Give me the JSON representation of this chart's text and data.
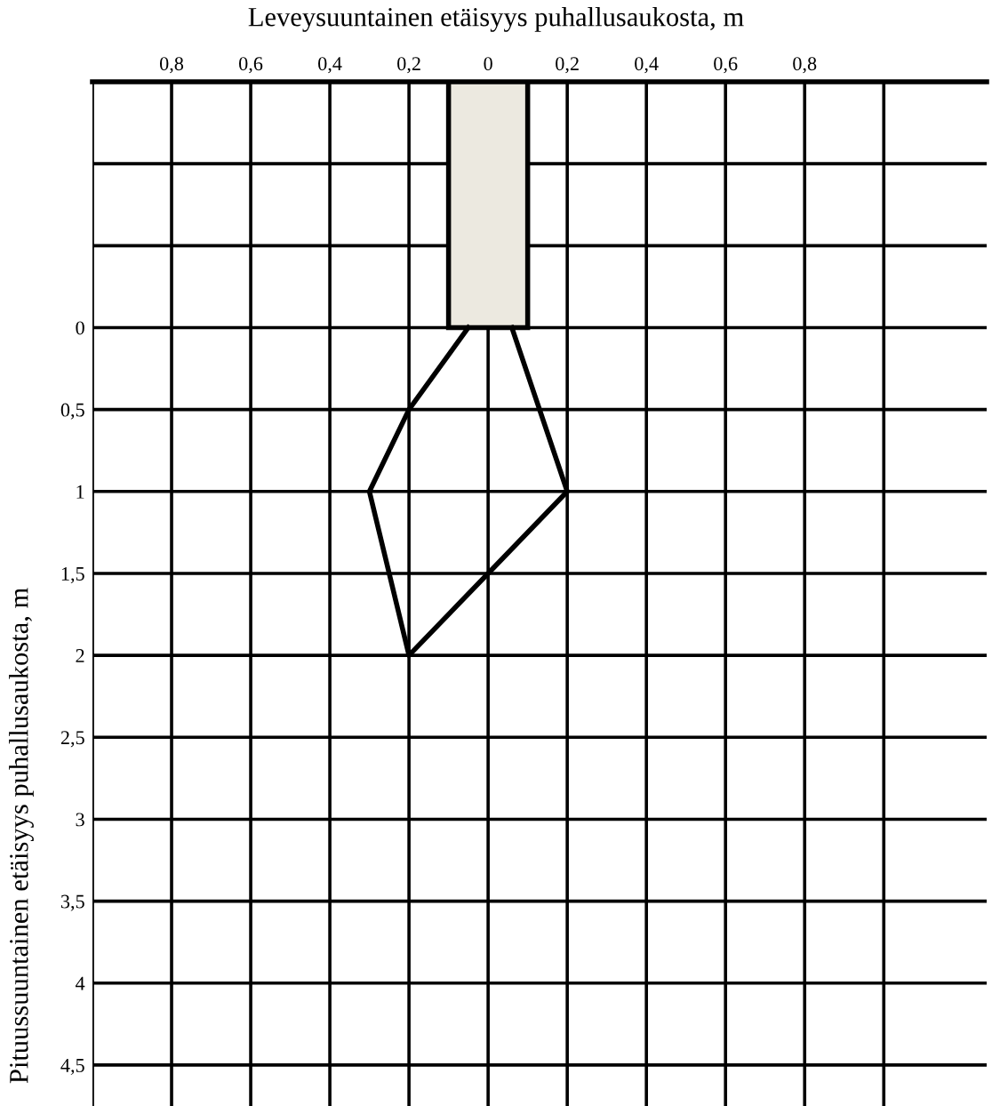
{
  "chart_data": {
    "type": "line",
    "xlabel": "Leveysuuntainen etäisyys puhallusaukosta, m",
    "ylabel": "Pituussuuntainen etäisyys puhallusaukosta, m",
    "x": [
      -0.05,
      -0.2,
      -0.3,
      -0.2,
      0,
      0.2,
      0.06
    ],
    "series": [
      {
        "color": "#000000",
        "values": [
          0,
          0.5,
          1.0,
          2.0,
          1.5,
          1.0,
          0
        ]
      },
      {
        "type": "bar",
        "x": [
          0
        ],
        "base": [
          -1.5
        ],
        "values": [
          1.5
        ],
        "color": "#ece9e0"
      }
    ],
    "xlim": [
      -1.0,
      1.26
    ],
    "ylim": [
      4.75,
      -1.5
    ],
    "xticks": [
      {
        "value": -1.0,
        "label": null
      },
      {
        "value": -0.8,
        "label": "0,8"
      },
      {
        "value": -0.6,
        "label": "0,6"
      },
      {
        "value": -0.4,
        "label": "0,4"
      },
      {
        "value": -0.2,
        "label": "0,2"
      },
      0,
      {
        "value": 0.2,
        "label": "0,2"
      },
      {
        "value": 0.4,
        "label": "0,4"
      },
      {
        "value": 0.6,
        "label": "0,6"
      },
      {
        "value": 0.8,
        "label": "0,8"
      },
      {
        "value": 1.0,
        "label": null
      }
    ],
    "yticks": [
      {
        "value": -1.5,
        "label": null
      },
      {
        "value": -1.0,
        "label": null
      },
      {
        "value": -0.5,
        "label": null
      },
      0,
      {
        "value": 0.5,
        "label": "0,5"
      },
      1,
      {
        "value": 1.5,
        "label": "1,5"
      },
      2,
      {
        "value": 2.5,
        "label": "2,5"
      },
      3,
      {
        "value": 3.5,
        "label": "3,5"
      },
      4,
      {
        "value": 4.5,
        "label": "4,5"
      }
    ],
    "grid": true,
    "marker": "none",
    "line_style": "solid"
  }
}
